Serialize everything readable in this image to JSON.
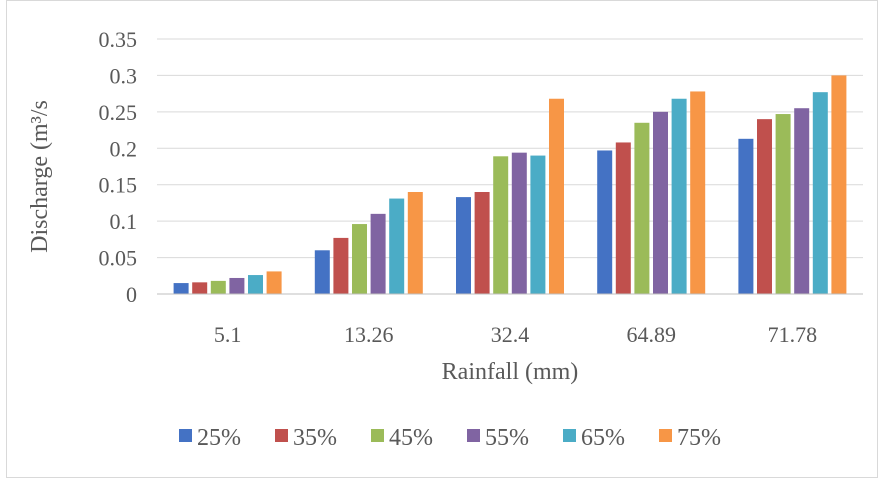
{
  "chart_data": {
    "type": "bar",
    "categories": [
      "5.1",
      "13.26",
      "32.4",
      "64.89",
      "71.78"
    ],
    "series": [
      {
        "name": "25%",
        "color": "#4472C4",
        "values": [
          0.015,
          0.06,
          0.133,
          0.197,
          0.213
        ]
      },
      {
        "name": "35%",
        "color": "#C0504D",
        "values": [
          0.016,
          0.077,
          0.14,
          0.208,
          0.24
        ]
      },
      {
        "name": "45%",
        "color": "#9BBB59",
        "values": [
          0.018,
          0.096,
          0.189,
          0.235,
          0.247
        ]
      },
      {
        "name": "55%",
        "color": "#8064A2",
        "values": [
          0.022,
          0.11,
          0.194,
          0.25,
          0.255
        ]
      },
      {
        "name": "65%",
        "color": "#4BACC6",
        "values": [
          0.026,
          0.131,
          0.19,
          0.268,
          0.277
        ]
      },
      {
        "name": "75%",
        "color": "#F79646",
        "values": [
          0.031,
          0.14,
          0.268,
          0.278,
          0.3
        ]
      }
    ],
    "yticks": [
      "0",
      "0.05",
      "0.1",
      "0.15",
      "0.2",
      "0.25",
      "0.3",
      "0.35"
    ],
    "ylim": [
      0,
      0.35
    ],
    "xlabel": "Rainfall (mm)",
    "ylabel": "Discharge (m³/s",
    "grid": true,
    "legend": "bottom"
  }
}
